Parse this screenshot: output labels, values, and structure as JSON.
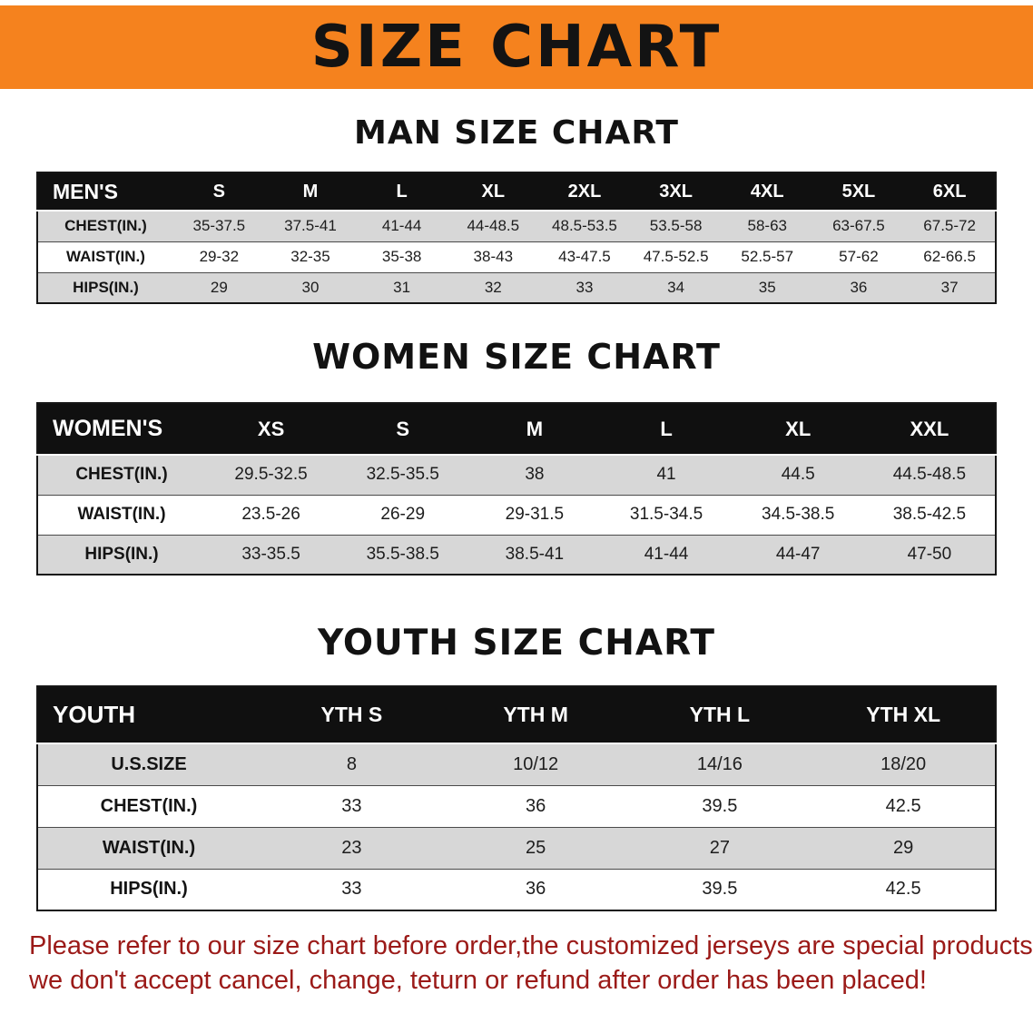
{
  "colors": {
    "banner-bg": "#F5821E",
    "banner-text": "#131313",
    "table-header-bg": "#101010",
    "table-header-text": "#ffffff",
    "row-shaded": "#d7d7d7",
    "row-plain": "#ffffff",
    "disclaimer-text": "#9B1A18"
  },
  "banner": {
    "title": "SIZE CHART"
  },
  "sections": [
    {
      "key": "men",
      "heading": "MAN SIZE CHART",
      "table": {
        "header": [
          "MEN'S",
          "S",
          "M",
          "L",
          "XL",
          "2XL",
          "3XL",
          "4XL",
          "5XL",
          "6XL"
        ],
        "rows": [
          {
            "label": "CHEST(IN.)",
            "values": [
              "35-37.5",
              "37.5-41",
              "41-44",
              "44-48.5",
              "48.5-53.5",
              "53.5-58",
              "58-63",
              "63-67.5",
              "67.5-72"
            ]
          },
          {
            "label": "WAIST(IN.)",
            "values": [
              "29-32",
              "32-35",
              "35-38",
              "38-43",
              "43-47.5",
              "47.5-52.5",
              "52.5-57",
              "57-62",
              "62-66.5"
            ]
          },
          {
            "label": "HIPS(IN.)",
            "values": [
              "29",
              "30",
              "31",
              "32",
              "33",
              "34",
              "35",
              "36",
              "37"
            ]
          }
        ]
      }
    },
    {
      "key": "women",
      "heading": "WOMEN SIZE CHART",
      "table": {
        "header": [
          "WOMEN'S",
          "XS",
          "S",
          "M",
          "L",
          "XL",
          "XXL"
        ],
        "rows": [
          {
            "label": "CHEST(IN.)",
            "values": [
              "29.5-32.5",
              "32.5-35.5",
              "38",
              "41",
              "44.5",
              "44.5-48.5"
            ]
          },
          {
            "label": "WAIST(IN.)",
            "values": [
              "23.5-26",
              "26-29",
              "29-31.5",
              "31.5-34.5",
              "34.5-38.5",
              "38.5-42.5"
            ]
          },
          {
            "label": "HIPS(IN.)",
            "values": [
              "33-35.5",
              "35.5-38.5",
              "38.5-41",
              "41-44",
              "44-47",
              "47-50"
            ]
          }
        ]
      }
    },
    {
      "key": "youth",
      "heading": "YOUTH SIZE CHART",
      "table": {
        "header": [
          "YOUTH",
          "YTH S",
          "YTH M",
          "YTH L",
          "YTH XL"
        ],
        "rows": [
          {
            "label": "U.S.SIZE",
            "values": [
              "8",
              "10/12",
              "14/16",
              "18/20"
            ]
          },
          {
            "label": "CHEST(IN.)",
            "values": [
              "33",
              "36",
              "39.5",
              "42.5"
            ]
          },
          {
            "label": "WAIST(IN.)",
            "values": [
              "23",
              "25",
              "27",
              "29"
            ]
          },
          {
            "label": "HIPS(IN.)",
            "values": [
              "33",
              "36",
              "39.5",
              "42.5"
            ]
          }
        ]
      }
    }
  ],
  "footer": {
    "lines": [
      "Please refer to our size chart before order,the customized jerseys are special products,",
      "we don't accept cancel, change, teturn or refund after order has been placed!"
    ]
  }
}
